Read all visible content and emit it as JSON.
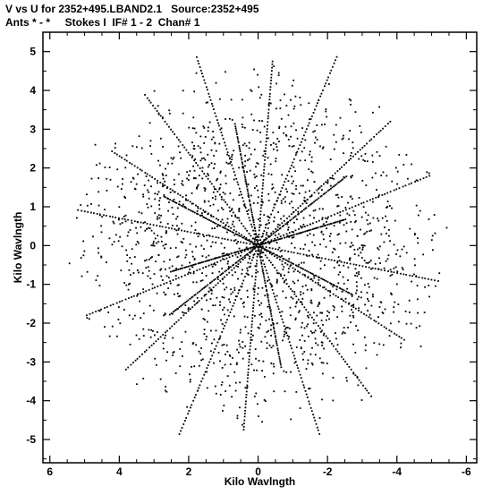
{
  "header": {
    "line1": "V vs U for 2352+495.LBAND2.1   Source:2352+495",
    "line2": "Ants * - *     Stokes I  IF# 1 - 2  Chan# 1"
  },
  "chart_data": {
    "type": "scatter",
    "title": "V vs U for 2352+495.LBAND2.1   Source:2352+495",
    "subtitle": "Ants * - *     Stokes I  IF# 1 - 2  Chan# 1",
    "xlabel": "Kilo Wavlngth",
    "ylabel": "Kilo Wavlngth",
    "xlim": [
      6.2,
      -6.3
    ],
    "ylim": [
      -5.6,
      5.5
    ],
    "x_ticks": [
      6,
      4,
      2,
      0,
      -2,
      -4,
      -6
    ],
    "y_ticks": [
      5,
      4,
      3,
      2,
      1,
      0,
      -1,
      -2,
      -3,
      -4,
      -5
    ],
    "x_tick_labels": [
      "6",
      "4",
      "2",
      "0",
      "-2",
      "-4",
      "-6"
    ],
    "y_tick_labels": [
      "5",
      "4",
      "3",
      "2",
      "1",
      "0",
      "-1",
      "-2",
      "-3",
      "-4",
      "-5"
    ],
    "grid": false,
    "marker_color": "#000000",
    "arms": [
      {
        "angle_deg": 10,
        "length": 5.3
      },
      {
        "angle_deg": 30,
        "length": 4.9
      },
      {
        "angle_deg": 50,
        "length": 5.1
      },
      {
        "angle_deg": 70,
        "length": 5.2
      },
      {
        "angle_deg": 95,
        "length": 4.8
      },
      {
        "angle_deg": 115,
        "length": 5.4
      },
      {
        "angle_deg": 140,
        "length": 5.0
      },
      {
        "angle_deg": 160,
        "length": 5.3
      },
      {
        "angle_deg": 25,
        "length": 3.0
      },
      {
        "angle_deg": 145,
        "length": 3.1
      },
      {
        "angle_deg": 165,
        "length": 2.6
      },
      {
        "angle_deg": 78,
        "length": 3.2
      }
    ],
    "dots_per_arm": 58,
    "scatter_points": 760,
    "scatter_extent": 5.0
  }
}
